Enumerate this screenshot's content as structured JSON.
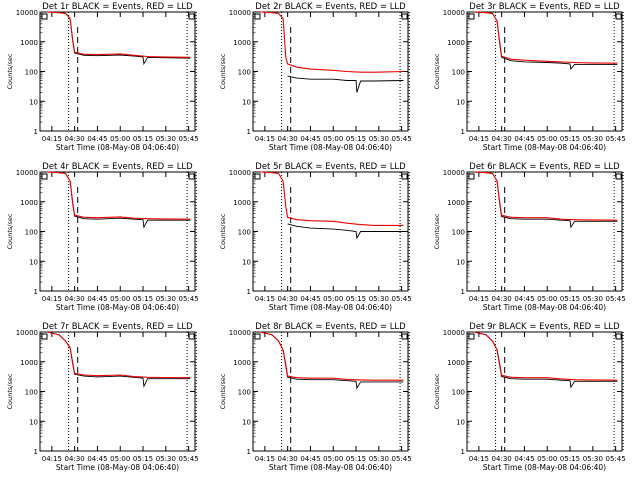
{
  "colors": {
    "events": "#000000",
    "lld": "#ee0000",
    "background": "#ffffff",
    "axes": "#000000"
  },
  "ylabel": "Counts/sec",
  "xlabel": "Start Time (08-May-08 04:06:40)",
  "chart_data": [
    {
      "type": "line",
      "title": "Det 1r BLACK = Events, RED = LLD",
      "xlabel": "Start Time (08-May-08 04:06:40)",
      "ylabel": "Counts/sec",
      "yscale": "log",
      "ylim": [
        1,
        10000
      ],
      "x_ticks": [
        "04:15",
        "04:30",
        "04:45",
        "05:00",
        "05:15",
        "05:30",
        "05:45"
      ],
      "y_ticks": [
        "1",
        "10",
        "100",
        "1000",
        "10000"
      ],
      "series": [
        {
          "name": "Events",
          "color": "#000000",
          "x": [
            4.2,
            4.33,
            4.4,
            4.45,
            4.48,
            4.5,
            4.6,
            4.75,
            5.0,
            5.15,
            5.25,
            5.26,
            5.3,
            5.45,
            5.77
          ],
          "y": [
            10000,
            9500,
            9000,
            6000,
            1000,
            420,
            350,
            340,
            360,
            330,
            310,
            180,
            300,
            290,
            280
          ]
        },
        {
          "name": "LLD",
          "color": "#ee0000",
          "x": [
            4.2,
            4.33,
            4.4,
            4.45,
            4.48,
            4.5,
            4.6,
            4.75,
            5.0,
            5.15,
            5.3,
            5.45,
            5.77
          ],
          "y": [
            10000,
            9500,
            9000,
            6000,
            1100,
            450,
            380,
            370,
            390,
            350,
            320,
            310,
            300
          ]
        }
      ],
      "annotations": {
        "dotted_lines": [
          "04:26",
          "05:44"
        ],
        "dashed_line": "04:32",
        "end_dotted": "05:50"
      }
    },
    {
      "type": "line",
      "title": "Det 2r BLACK = Events, RED = LLD",
      "xlabel": "Start Time (08-May-08 04:06:40)",
      "ylabel": "Counts/sec",
      "yscale": "log",
      "ylim": [
        1,
        10000
      ],
      "x_ticks": [
        "04:15",
        "04:30",
        "04:45",
        "05:00",
        "05:15",
        "05:30",
        "05:45"
      ],
      "y_ticks": [
        "1",
        "10",
        "100",
        "1000",
        "10000"
      ],
      "series": [
        {
          "name": "Events",
          "color": "#000000",
          "x": [
            4.5,
            4.6,
            4.75,
            5.0,
            5.15,
            5.25,
            5.26,
            5.3,
            5.45,
            5.77
          ],
          "y": [
            70,
            60,
            55,
            55,
            50,
            50,
            20,
            48,
            48,
            50
          ]
        },
        {
          "name": "LLD",
          "color": "#ee0000",
          "x": [
            4.2,
            4.33,
            4.4,
            4.45,
            4.48,
            4.5,
            4.6,
            4.75,
            5.0,
            5.15,
            5.3,
            5.45,
            5.77
          ],
          "y": [
            10000,
            9500,
            9000,
            6000,
            300,
            180,
            140,
            120,
            110,
            100,
            95,
            95,
            100
          ]
        }
      ],
      "annotations": {
        "dotted_lines": [
          "04:26",
          "05:44"
        ],
        "dashed_line": "04:32",
        "end_dotted": "05:50"
      }
    },
    {
      "type": "line",
      "title": "Det 3r BLACK = Events, RED = LLD",
      "xlabel": "Start Time (08-May-08 04:06:40)",
      "ylabel": "Counts/sec",
      "yscale": "log",
      "ylim": [
        1,
        10000
      ],
      "x_ticks": [
        "04:15",
        "04:30",
        "04:45",
        "05:00",
        "05:15",
        "05:30",
        "05:45"
      ],
      "y_ticks": [
        "1",
        "10",
        "100",
        "1000",
        "10000"
      ],
      "series": [
        {
          "name": "Events",
          "color": "#000000",
          "x": [
            4.2,
            4.33,
            4.4,
            4.45,
            4.48,
            4.5,
            4.6,
            4.75,
            5.0,
            5.15,
            5.25,
            5.26,
            5.3,
            5.45,
            5.77
          ],
          "y": [
            10000,
            9500,
            9000,
            5000,
            800,
            300,
            230,
            210,
            200,
            190,
            180,
            120,
            175,
            170,
            170
          ]
        },
        {
          "name": "LLD",
          "color": "#ee0000",
          "x": [
            4.2,
            4.33,
            4.4,
            4.45,
            4.48,
            4.5,
            4.6,
            4.75,
            5.0,
            5.15,
            5.3,
            5.45,
            5.77
          ],
          "y": [
            10000,
            9500,
            9000,
            5000,
            900,
            330,
            260,
            240,
            220,
            210,
            200,
            195,
            190
          ]
        }
      ],
      "annotations": {
        "dotted_lines": [
          "04:26",
          "05:44"
        ],
        "dashed_line": "04:32",
        "end_dotted": "05:50"
      }
    },
    {
      "type": "line",
      "title": "Det 4r BLACK = Events, RED = LLD",
      "xlabel": "Start Time (08-May-08 04:06:40)",
      "ylabel": "Counts/sec",
      "yscale": "log",
      "ylim": [
        1,
        10000
      ],
      "x_ticks": [
        "04:15",
        "04:30",
        "04:45",
        "05:00",
        "05:15",
        "05:30",
        "05:45"
      ],
      "y_ticks": [
        "1",
        "10",
        "100",
        "1000",
        "10000"
      ],
      "series": [
        {
          "name": "Events",
          "color": "#000000",
          "x": [
            4.2,
            4.33,
            4.4,
            4.45,
            4.48,
            4.5,
            4.6,
            4.75,
            5.0,
            5.15,
            5.25,
            5.26,
            5.3,
            5.45,
            5.77
          ],
          "y": [
            10000,
            9500,
            9000,
            5000,
            800,
            330,
            270,
            260,
            280,
            260,
            250,
            140,
            240,
            240,
            240
          ]
        },
        {
          "name": "LLD",
          "color": "#ee0000",
          "x": [
            4.2,
            4.33,
            4.4,
            4.45,
            4.48,
            4.5,
            4.6,
            4.75,
            5.0,
            5.15,
            5.3,
            5.45,
            5.77
          ],
          "y": [
            10000,
            9500,
            9000,
            5000,
            900,
            360,
            300,
            290,
            310,
            280,
            270,
            265,
            260
          ]
        }
      ],
      "annotations": {
        "dotted_lines": [
          "04:26",
          "05:44"
        ],
        "dashed_line": "04:32",
        "end_dotted": "05:50"
      }
    },
    {
      "type": "line",
      "title": "Det 5r BLACK = Events, RED = LLD",
      "xlabel": "Start Time (08-May-08 04:06:40)",
      "ylabel": "Counts/sec",
      "yscale": "log",
      "ylim": [
        1,
        10000
      ],
      "x_ticks": [
        "04:15",
        "04:30",
        "04:45",
        "05:00",
        "05:15",
        "05:30",
        "05:45"
      ],
      "y_ticks": [
        "1",
        "10",
        "100",
        "1000",
        "10000"
      ],
      "series": [
        {
          "name": "Events",
          "color": "#000000",
          "x": [
            4.5,
            4.6,
            4.75,
            5.0,
            5.15,
            5.25,
            5.26,
            5.3,
            5.45,
            5.77
          ],
          "y": [
            180,
            150,
            130,
            120,
            110,
            100,
            60,
            100,
            100,
            100
          ]
        },
        {
          "name": "LLD",
          "color": "#ee0000",
          "x": [
            4.2,
            4.33,
            4.4,
            4.45,
            4.48,
            4.5,
            4.6,
            4.75,
            5.0,
            5.15,
            5.3,
            5.45,
            5.77
          ],
          "y": [
            10000,
            9500,
            9000,
            5000,
            700,
            300,
            250,
            230,
            220,
            190,
            170,
            160,
            160
          ]
        }
      ],
      "annotations": {
        "dotted_lines": [
          "04:26",
          "05:44"
        ],
        "dashed_line": "04:32",
        "end_dotted": "05:50"
      }
    },
    {
      "type": "line",
      "title": "Det 6r BLACK = Events, RED = LLD",
      "xlabel": "Start Time (08-May-08 04:06:40)",
      "ylabel": "Counts/sec",
      "yscale": "log",
      "ylim": [
        1,
        10000
      ],
      "x_ticks": [
        "04:15",
        "04:30",
        "04:45",
        "05:00",
        "05:15",
        "05:30",
        "05:45"
      ],
      "y_ticks": [
        "1",
        "10",
        "100",
        "1000",
        "10000"
      ],
      "series": [
        {
          "name": "Events",
          "color": "#000000",
          "x": [
            4.2,
            4.33,
            4.4,
            4.45,
            4.48,
            4.5,
            4.6,
            4.75,
            5.0,
            5.15,
            5.25,
            5.26,
            5.3,
            5.45,
            5.77
          ],
          "y": [
            10000,
            9500,
            9000,
            5000,
            800,
            320,
            270,
            260,
            260,
            240,
            230,
            140,
            220,
            220,
            220
          ]
        },
        {
          "name": "LLD",
          "color": "#ee0000",
          "x": [
            4.2,
            4.33,
            4.4,
            4.45,
            4.48,
            4.5,
            4.6,
            4.75,
            5.0,
            5.15,
            5.3,
            5.45,
            5.77
          ],
          "y": [
            10000,
            9500,
            9000,
            5000,
            900,
            350,
            300,
            290,
            290,
            260,
            250,
            245,
            240
          ]
        }
      ],
      "annotations": {
        "dotted_lines": [
          "04:26",
          "05:44"
        ],
        "dashed_line": "04:32",
        "end_dotted": "05:50"
      }
    },
    {
      "type": "line",
      "title": "Det 7r BLACK = Events, RED = LLD",
      "xlabel": "Start Time (08-May-08 04:06:40)",
      "ylabel": "Counts/sec",
      "yscale": "log",
      "ylim": [
        1,
        10000
      ],
      "x_ticks": [
        "04:15",
        "04:30",
        "04:45",
        "05:00",
        "05:15",
        "05:30",
        "05:45"
      ],
      "y_ticks": [
        "1",
        "10",
        "100",
        "1000",
        "10000"
      ],
      "series": [
        {
          "name": "Events",
          "color": "#000000",
          "x": [
            4.2,
            4.33,
            4.4,
            4.45,
            4.48,
            4.5,
            4.6,
            4.75,
            5.0,
            5.15,
            5.25,
            5.26,
            5.3,
            5.45,
            5.77
          ],
          "y": [
            10000,
            8000,
            5000,
            3000,
            800,
            380,
            330,
            310,
            330,
            300,
            280,
            150,
            270,
            270,
            270
          ]
        },
        {
          "name": "LLD",
          "color": "#ee0000",
          "x": [
            4.2,
            4.33,
            4.4,
            4.45,
            4.48,
            4.5,
            4.6,
            4.75,
            5.0,
            5.15,
            5.3,
            5.45,
            5.77
          ],
          "y": [
            10000,
            8000,
            5000,
            3000,
            900,
            410,
            360,
            340,
            360,
            320,
            300,
            295,
            290
          ]
        }
      ],
      "annotations": {
        "dotted_lines": [
          "04:26",
          "05:44"
        ],
        "dashed_line": "04:32",
        "end_dotted": "05:50"
      }
    },
    {
      "type": "line",
      "title": "Det 8r BLACK = Events, RED = LLD",
      "xlabel": "Start Time (08-May-08 04:06:40)",
      "ylabel": "Counts/sec",
      "yscale": "log",
      "ylim": [
        1,
        10000
      ],
      "x_ticks": [
        "04:15",
        "04:30",
        "04:45",
        "05:00",
        "05:15",
        "05:30",
        "05:45"
      ],
      "y_ticks": [
        "1",
        "10",
        "100",
        "1000",
        "10000"
      ],
      "series": [
        {
          "name": "Events",
          "color": "#000000",
          "x": [
            4.2,
            4.33,
            4.4,
            4.45,
            4.48,
            4.5,
            4.6,
            4.75,
            5.0,
            5.15,
            5.25,
            5.26,
            5.3,
            5.45,
            5.77
          ],
          "y": [
            10000,
            8000,
            5000,
            2500,
            700,
            300,
            260,
            250,
            250,
            230,
            220,
            130,
            210,
            210,
            210
          ]
        },
        {
          "name": "LLD",
          "color": "#ee0000",
          "x": [
            4.2,
            4.33,
            4.4,
            4.45,
            4.48,
            4.5,
            4.6,
            4.75,
            5.0,
            5.15,
            5.3,
            5.45,
            5.77
          ],
          "y": [
            10000,
            8000,
            5000,
            2500,
            800,
            330,
            290,
            280,
            280,
            255,
            245,
            240,
            240
          ]
        }
      ],
      "annotations": {
        "dotted_lines": [
          "04:26",
          "05:44"
        ],
        "dashed_line": "04:32",
        "end_dotted": "05:50"
      }
    },
    {
      "type": "line",
      "title": "Det 9r BLACK = Events, RED = LLD",
      "xlabel": "Start Time (08-May-08 04:06:40)",
      "ylabel": "Counts/sec",
      "yscale": "log",
      "ylim": [
        1,
        10000
      ],
      "x_ticks": [
        "04:15",
        "04:30",
        "04:45",
        "05:00",
        "05:15",
        "05:30",
        "05:45"
      ],
      "y_ticks": [
        "1",
        "10",
        "100",
        "1000",
        "10000"
      ],
      "series": [
        {
          "name": "Events",
          "color": "#000000",
          "x": [
            4.2,
            4.33,
            4.4,
            4.45,
            4.48,
            4.5,
            4.6,
            4.75,
            5.0,
            5.15,
            5.25,
            5.26,
            5.3,
            5.45,
            5.77
          ],
          "y": [
            10000,
            8000,
            5000,
            2500,
            700,
            320,
            270,
            260,
            260,
            240,
            230,
            140,
            220,
            220,
            220
          ]
        },
        {
          "name": "LLD",
          "color": "#ee0000",
          "x": [
            4.2,
            4.33,
            4.4,
            4.45,
            4.48,
            4.5,
            4.6,
            4.75,
            5.0,
            5.15,
            5.3,
            5.45,
            5.77
          ],
          "y": [
            10000,
            8000,
            5000,
            2500,
            800,
            350,
            300,
            290,
            290,
            265,
            250,
            245,
            240
          ]
        }
      ],
      "annotations": {
        "dotted_lines": [
          "04:26",
          "05:44"
        ],
        "dashed_line": "04:32",
        "end_dotted": "05:50"
      }
    }
  ]
}
